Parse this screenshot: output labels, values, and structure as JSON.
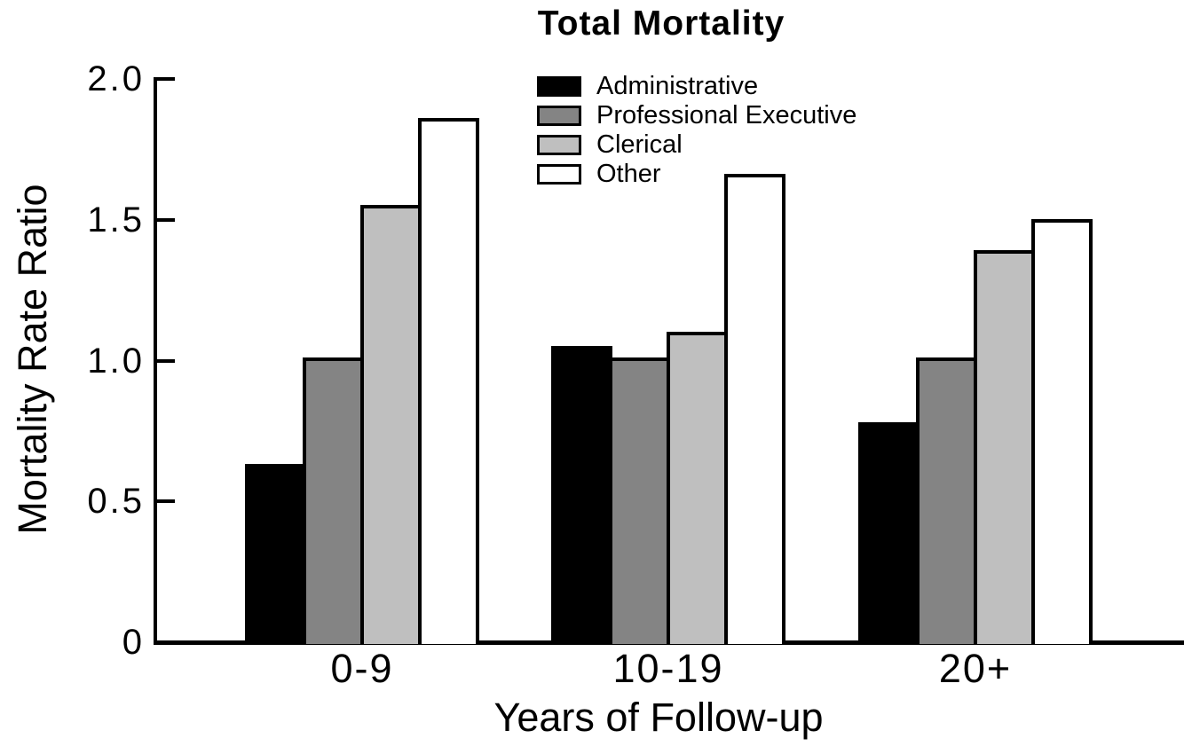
{
  "chart_data": {
    "type": "bar",
    "title": "Total Mortality",
    "xlabel": "Years of Follow-up",
    "ylabel": "Mortality Rate Ratio",
    "categories": [
      "0-9",
      "10-19",
      "20+"
    ],
    "series": [
      {
        "name": "Administrative",
        "color": "#000000",
        "values": [
          0.62,
          1.04,
          0.77
        ]
      },
      {
        "name": "Professional Executive",
        "color": "#848484",
        "values": [
          1.0,
          1.0,
          1.0
        ]
      },
      {
        "name": "Clerical",
        "color": "#bfbfbf",
        "values": [
          1.54,
          1.09,
          1.38
        ]
      },
      {
        "name": "Other",
        "color": "#ffffff",
        "values": [
          1.85,
          1.65,
          1.49
        ]
      }
    ],
    "ylim": [
      0,
      2.0
    ],
    "yticks": {
      "values": [
        0,
        0.5,
        1.0,
        1.5,
        2.0
      ],
      "labels": [
        "0",
        "0.5",
        "1.0",
        "1.5",
        "2.0"
      ]
    },
    "legend_position": "top-center-inside",
    "grid": false,
    "axis_color": "#000000",
    "bar_border_color": "#000000",
    "background_color": "#ffffff"
  }
}
